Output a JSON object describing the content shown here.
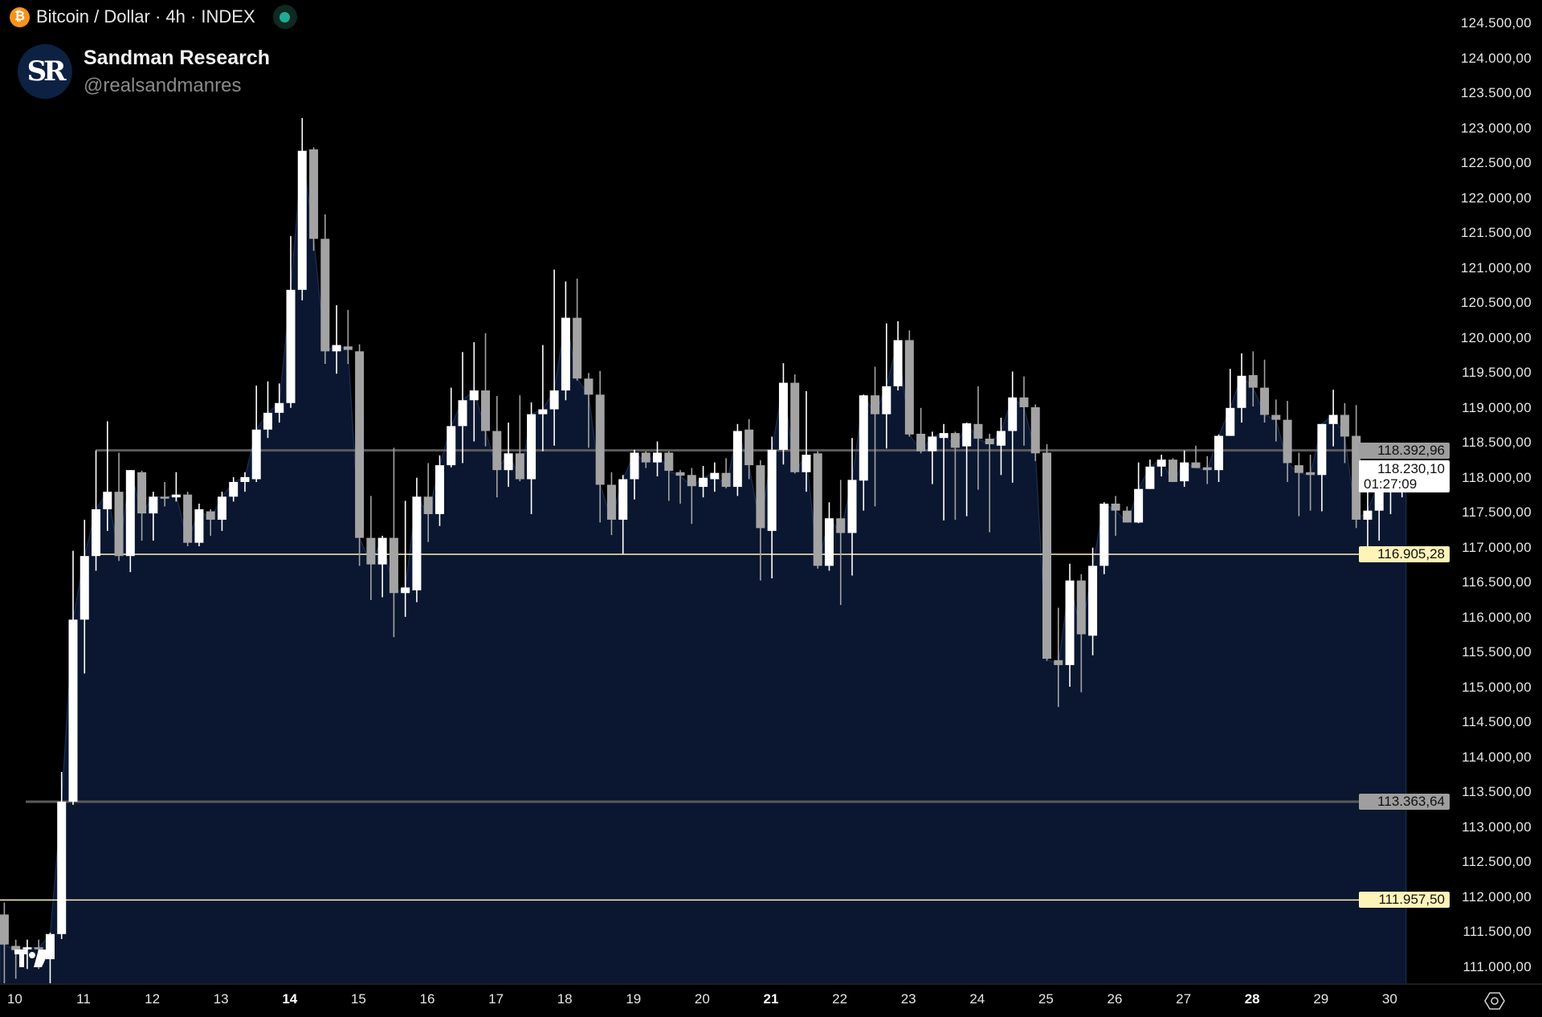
{
  "header": {
    "symbol_icon": "bitcoin-icon",
    "title": "Bitcoin / Dollar · 4h · INDEX",
    "status_icon": "market-open-dot-icon",
    "status_color": "#22ab94"
  },
  "brand": {
    "avatar_text": "SR",
    "name": "Sandman Research",
    "handle": "@realsandmanres"
  },
  "colors": {
    "background": "#000000",
    "area_fill": "#0b1730",
    "up_candle": "#ffffff",
    "down_candle": "#a3a3a3",
    "gray_line": "#5a5a5a",
    "yellow_line": "#fff4b8"
  },
  "chart_data": {
    "type": "candlestick",
    "interval": "4h",
    "ylim": [
      110800,
      124700
    ],
    "y_ticks": [
      124500,
      124000,
      123500,
      123000,
      122500,
      122000,
      121500,
      121000,
      120500,
      120000,
      119500,
      119000,
      118500,
      118000,
      117500,
      117000,
      116500,
      116000,
      115500,
      115000,
      114500,
      114000,
      113500,
      113000,
      112500,
      112000,
      111500,
      111000
    ],
    "y_tick_labels": [
      "124.500,00",
      "124.000,00",
      "123.500,00",
      "123.000,00",
      "122.500,00",
      "122.000,00",
      "121.500,00",
      "121.000,00",
      "120.500,00",
      "120.000,00",
      "119.500,00",
      "119.000,00",
      "118.500,00",
      "118.000,00",
      "117.500,00",
      "117.000,00",
      "116.500,00",
      "116.000,00",
      "115.500,00",
      "115.000,00",
      "114.500,00",
      "114.000,00",
      "113.500,00",
      "113.000,00",
      "112.500,00",
      "112.000,00",
      "111.500,00",
      "111.000,00"
    ],
    "x_ticks": [
      {
        "label": "10",
        "bold": false
      },
      {
        "label": "11",
        "bold": false
      },
      {
        "label": "12",
        "bold": false
      },
      {
        "label": "13",
        "bold": false
      },
      {
        "label": "14",
        "bold": true
      },
      {
        "label": "15",
        "bold": false
      },
      {
        "label": "16",
        "bold": false
      },
      {
        "label": "17",
        "bold": false
      },
      {
        "label": "18",
        "bold": false
      },
      {
        "label": "19",
        "bold": false
      },
      {
        "label": "20",
        "bold": false
      },
      {
        "label": "21",
        "bold": true
      },
      {
        "label": "22",
        "bold": false
      },
      {
        "label": "23",
        "bold": false
      },
      {
        "label": "24",
        "bold": false
      },
      {
        "label": "25",
        "bold": false
      },
      {
        "label": "26",
        "bold": false
      },
      {
        "label": "27",
        "bold": false
      },
      {
        "label": "28",
        "bold": true
      },
      {
        "label": "29",
        "bold": false
      },
      {
        "label": "30",
        "bold": false
      }
    ],
    "candles_ohlc": [
      [
        111750,
        111920,
        110760,
        111320
      ],
      [
        111300,
        111390,
        110830,
        111240
      ],
      [
        111270,
        111390,
        110970,
        111280
      ],
      [
        111280,
        111390,
        110970,
        111270
      ],
      [
        111110,
        111490,
        110760,
        111470
      ],
      [
        111470,
        113790,
        111400,
        113365
      ],
      [
        113365,
        116955,
        113320,
        115970
      ],
      [
        115970,
        117400,
        115200,
        116880
      ],
      [
        116880,
        118390,
        116670,
        117550
      ],
      [
        117550,
        118810,
        117240,
        117800
      ],
      [
        117800,
        118360,
        116810,
        116880
      ],
      [
        116880,
        118110,
        116650,
        118110
      ],
      [
        118080,
        118100,
        117100,
        117490
      ],
      [
        117490,
        117800,
        117100,
        117730
      ],
      [
        117730,
        117940,
        117590,
        117720
      ],
      [
        117720,
        118080,
        117660,
        117760
      ],
      [
        117760,
        117800,
        117020,
        117070
      ],
      [
        117070,
        117630,
        117020,
        117550
      ],
      [
        117520,
        117550,
        117170,
        117400
      ],
      [
        117400,
        117800,
        117240,
        117730
      ],
      [
        117730,
        118010,
        117660,
        117940
      ],
      [
        117940,
        118080,
        117800,
        118010
      ],
      [
        117980,
        119320,
        117940,
        118690
      ],
      [
        118690,
        119380,
        118570,
        118930
      ],
      [
        118930,
        119350,
        118790,
        119070
      ],
      [
        119070,
        121460,
        119000,
        120690
      ],
      [
        120690,
        123150,
        120540,
        122680
      ],
      [
        122700,
        122730,
        121250,
        121420
      ],
      [
        121420,
        121770,
        119630,
        119810
      ],
      [
        119810,
        120470,
        119490,
        119900
      ],
      [
        119880,
        120400,
        119630,
        119830
      ],
      [
        119810,
        119910,
        116740,
        117140
      ],
      [
        117140,
        117740,
        116250,
        116760
      ],
      [
        116760,
        117170,
        116290,
        117140
      ],
      [
        117140,
        118430,
        115720,
        116350
      ],
      [
        116350,
        117670,
        116010,
        116430
      ],
      [
        116390,
        118000,
        116220,
        117730
      ],
      [
        117730,
        118210,
        117080,
        117480
      ],
      [
        117480,
        118320,
        117310,
        118180
      ],
      [
        118180,
        119290,
        118150,
        118740
      ],
      [
        118740,
        119800,
        118210,
        119110
      ],
      [
        119110,
        119940,
        118520,
        119250
      ],
      [
        119250,
        120070,
        118450,
        118670
      ],
      [
        118670,
        119170,
        117720,
        118110
      ],
      [
        118110,
        118790,
        117870,
        118350
      ],
      [
        118350,
        119180,
        117950,
        117980
      ],
      [
        117980,
        119080,
        117480,
        118910
      ],
      [
        118910,
        119900,
        118380,
        118980
      ],
      [
        118980,
        120980,
        118460,
        119250
      ],
      [
        119250,
        120810,
        119110,
        120290
      ],
      [
        120290,
        120850,
        119390,
        119420
      ],
      [
        119420,
        119500,
        118430,
        119190
      ],
      [
        119190,
        119530,
        117360,
        117900
      ],
      [
        117900,
        118080,
        117180,
        117400
      ],
      [
        117400,
        118040,
        116910,
        117980
      ],
      [
        117980,
        118400,
        117690,
        118360
      ],
      [
        118360,
        118380,
        118140,
        118220
      ],
      [
        118220,
        118520,
        118020,
        118360
      ],
      [
        118360,
        118380,
        117670,
        118100
      ],
      [
        118080,
        118110,
        117630,
        118030
      ],
      [
        118040,
        118140,
        117340,
        117880
      ],
      [
        117870,
        118170,
        117720,
        118000
      ],
      [
        117980,
        118220,
        117800,
        118070
      ],
      [
        118070,
        118280,
        117850,
        117870
      ],
      [
        117870,
        118770,
        117740,
        118670
      ],
      [
        118690,
        118840,
        117980,
        118180
      ],
      [
        118180,
        118250,
        116530,
        117280
      ],
      [
        117240,
        118590,
        116560,
        118400
      ],
      [
        118400,
        119640,
        118190,
        119360
      ],
      [
        119360,
        119480,
        118060,
        118080
      ],
      [
        118080,
        119240,
        117800,
        118330
      ],
      [
        118350,
        118380,
        116700,
        116740
      ],
      [
        116740,
        117650,
        116670,
        117420
      ],
      [
        117420,
        117970,
        116180,
        117210
      ],
      [
        117210,
        118570,
        116600,
        117970
      ],
      [
        117960,
        119190,
        117530,
        119180
      ],
      [
        119180,
        119590,
        117590,
        118910
      ],
      [
        118910,
        120210,
        118420,
        119310
      ],
      [
        119310,
        120240,
        119250,
        119970
      ],
      [
        119970,
        120110,
        118590,
        118620
      ],
      [
        118630,
        119000,
        118350,
        118380
      ],
      [
        118380,
        118660,
        117910,
        118590
      ],
      [
        118570,
        118770,
        117390,
        118640
      ],
      [
        118640,
        118660,
        117400,
        118430
      ],
      [
        118450,
        118790,
        117450,
        118780
      ],
      [
        118770,
        119310,
        117830,
        118560
      ],
      [
        118560,
        118630,
        117220,
        118480
      ],
      [
        118460,
        118860,
        118040,
        118670
      ],
      [
        118670,
        119520,
        117930,
        119150
      ],
      [
        119150,
        119450,
        118460,
        119010
      ],
      [
        119010,
        119050,
        118240,
        118350
      ],
      [
        118360,
        118480,
        115380,
        115410
      ],
      [
        115390,
        116140,
        114720,
        115320
      ],
      [
        115320,
        116770,
        115010,
        116530
      ],
      [
        116530,
        116620,
        114930,
        115760
      ],
      [
        115740,
        117000,
        115460,
        116740
      ],
      [
        116740,
        117650,
        116620,
        117630
      ],
      [
        117630,
        117740,
        117170,
        117530
      ],
      [
        117530,
        117590,
        117360,
        117360
      ],
      [
        117360,
        118220,
        117350,
        117840
      ],
      [
        117840,
        118260,
        117840,
        118160
      ],
      [
        118160,
        118330,
        118020,
        118260
      ],
      [
        118260,
        118280,
        117940,
        117940
      ],
      [
        117950,
        118390,
        117870,
        118220
      ],
      [
        118220,
        118460,
        118140,
        118140
      ],
      [
        118150,
        118310,
        117910,
        118110
      ],
      [
        118110,
        118620,
        117940,
        118600
      ],
      [
        118600,
        119560,
        118600,
        119000
      ],
      [
        119000,
        119780,
        118790,
        119460
      ],
      [
        119470,
        119810,
        119020,
        119290
      ],
      [
        119290,
        119690,
        118790,
        118900
      ],
      [
        118900,
        119120,
        118520,
        118830
      ],
      [
        118830,
        119100,
        117940,
        118210
      ],
      [
        118180,
        118360,
        117450,
        118070
      ],
      [
        118080,
        118330,
        117530,
        118040
      ],
      [
        118040,
        118770,
        117520,
        118770
      ],
      [
        118770,
        119260,
        118450,
        118900
      ],
      [
        118900,
        119070,
        118210,
        118590
      ],
      [
        118600,
        119040,
        117280,
        117400
      ],
      [
        117400,
        118040,
        116970,
        117530
      ],
      [
        117530,
        117970,
        117100,
        117950
      ],
      [
        117940,
        118220,
        117480,
        118170
      ],
      [
        118170,
        118250,
        117720,
        118230
      ]
    ],
    "horizontal_lines": [
      {
        "value": 118392.96,
        "label": "118.392,96",
        "style": "gray"
      },
      {
        "value": 116905.28,
        "label": "116.905,28",
        "style": "yellow"
      },
      {
        "value": 113363.64,
        "label": "113.363,64",
        "style": "gray"
      },
      {
        "value": 111957.5,
        "label": "111.957,50",
        "style": "yellow"
      }
    ],
    "last_price": {
      "value": 118230.1,
      "label": "118.230,10",
      "countdown": "01:27:09"
    }
  },
  "footer": {
    "logo_icon": "tradingview-logo-icon",
    "settings_icon": "settings-hexagon-icon"
  }
}
